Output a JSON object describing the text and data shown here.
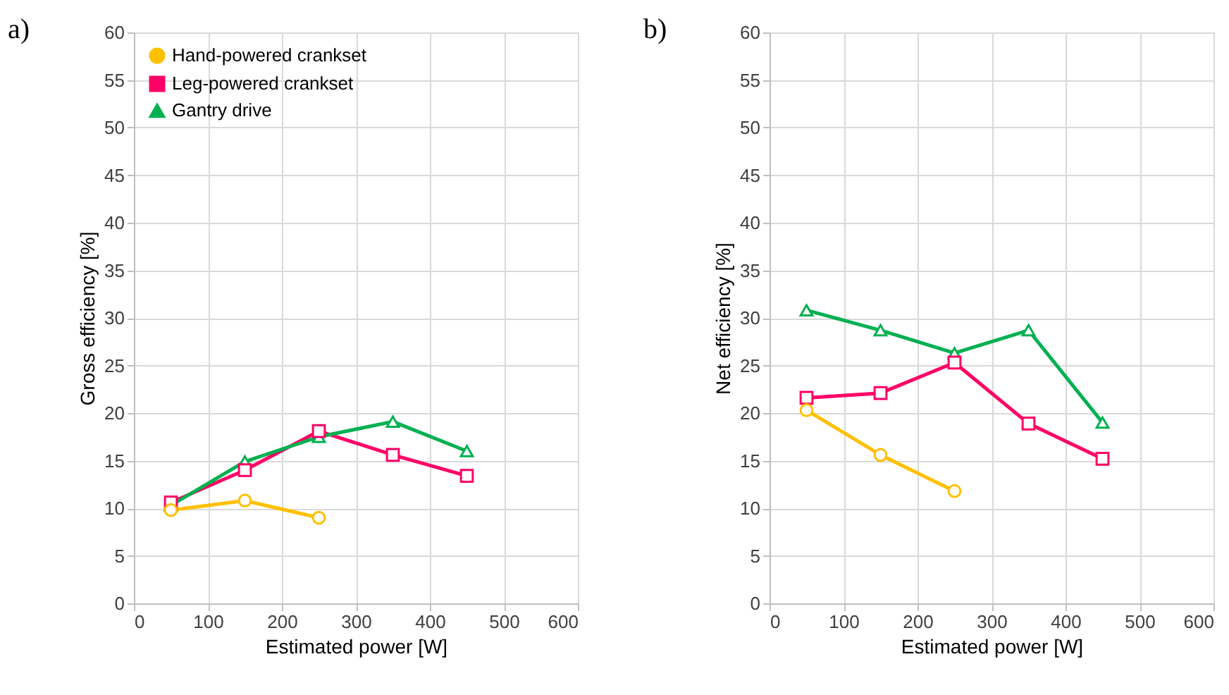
{
  "chart_data": [
    {
      "type": "line",
      "title": "a)",
      "xlabel": "Estimated power [W]",
      "ylabel": "Gross efficiency [%]",
      "xlim": [
        0,
        600
      ],
      "xticks": [
        0,
        100,
        200,
        300,
        400,
        500,
        600
      ],
      "ylim": [
        0,
        60
      ],
      "yticks": [
        0,
        5,
        10,
        15,
        20,
        25,
        30,
        35,
        40,
        45,
        50,
        55,
        60
      ],
      "grid": true,
      "legend": "top left",
      "line_style": "solid",
      "series": [
        {
          "name": "Hand-powered crankset",
          "color": "#ffc000",
          "marker": "circle",
          "x": [
            50,
            150,
            250
          ],
          "values": [
            9.8,
            10.8,
            9.0
          ]
        },
        {
          "name": "Leg-powered crankset",
          "color": "#ff0066",
          "marker": "square",
          "x": [
            50,
            150,
            250,
            350,
            450
          ],
          "values": [
            10.6,
            14.0,
            18.1,
            15.6,
            13.4
          ]
        },
        {
          "name": "Gantry drive",
          "color": "#00b050",
          "marker": "triangle",
          "x": [
            50,
            150,
            250,
            350,
            450
          ],
          "values": [
            10.3,
            14.9,
            17.5,
            19.1,
            16.0
          ]
        }
      ]
    },
    {
      "type": "line",
      "title": "b)",
      "xlabel": "Estimated power [W]",
      "ylabel": "Net efficiency [%]",
      "xlim": [
        0,
        600
      ],
      "xticks": [
        0,
        100,
        200,
        300,
        400,
        500,
        600
      ],
      "ylim": [
        0,
        60
      ],
      "yticks": [
        0,
        5,
        10,
        15,
        20,
        25,
        30,
        35,
        40,
        45,
        50,
        55,
        60
      ],
      "grid": true,
      "legend": "top left",
      "line_style": "solid",
      "series": [
        {
          "name": "Hand-powered crankset",
          "color": "#ffc000",
          "marker": "circle",
          "x": [
            50,
            150,
            250
          ],
          "values": [
            20.3,
            15.6,
            11.8
          ]
        },
        {
          "name": "Leg-powered crankset",
          "color": "#ff0066",
          "marker": "square",
          "x": [
            50,
            150,
            250,
            350,
            450
          ],
          "values": [
            21.6,
            22.1,
            25.3,
            18.9,
            15.2
          ]
        },
        {
          "name": "Gantry drive",
          "color": "#00b050",
          "marker": "triangle",
          "x": [
            50,
            150,
            250,
            350,
            450
          ],
          "values": [
            30.8,
            28.7,
            26.3,
            28.7,
            19.0
          ]
        }
      ]
    }
  ]
}
